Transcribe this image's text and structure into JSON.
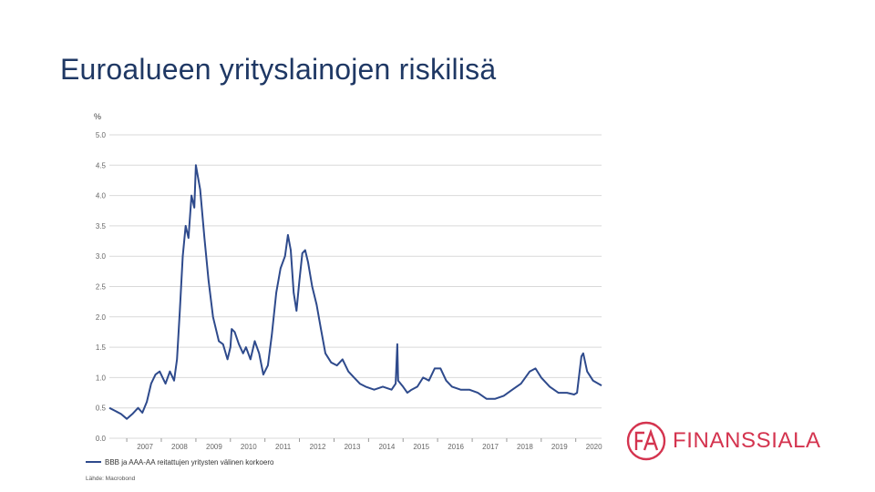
{
  "title": "Euroalueen yrityslainojen riskilisä",
  "logo": {
    "text": "FINANSSIALA",
    "mark_text": "FA",
    "color": "#d4344f"
  },
  "chart_data": {
    "type": "line",
    "title": "",
    "unit_label": "%",
    "xlabel": "",
    "ylabel": "",
    "ylim": [
      0.0,
      5.0
    ],
    "xlim": [
      "2006-07-01",
      "2020-09-30"
    ],
    "y_ticks": [
      0.0,
      0.5,
      1.0,
      1.5,
      2.0,
      2.5,
      3.0,
      3.5,
      4.0,
      4.5,
      5.0
    ],
    "y_tick_labels": [
      "0.0",
      "0.5",
      "1.0",
      "1.5",
      "2.0",
      "2.5",
      "3.0",
      "3.5",
      "4.0",
      "4.5",
      "5.0"
    ],
    "x_ticks": [
      "2007-01-01",
      "2008-01-01",
      "2009-01-01",
      "2010-01-01",
      "2011-01-01",
      "2012-01-01",
      "2013-01-01",
      "2014-01-01",
      "2015-01-01",
      "2016-01-01",
      "2017-01-01",
      "2018-01-01",
      "2019-01-01",
      "2020-01-01"
    ],
    "x_tick_labels": [
      "2007",
      "2008",
      "2009",
      "2010",
      "2011",
      "2012",
      "2013",
      "2014",
      "2015",
      "2016",
      "2017",
      "2018",
      "2019",
      "2020"
    ],
    "grid": true,
    "legend_position": "bottom-left",
    "line_color": "#2e4a8c",
    "source": "Lähde: Macrobond",
    "series": [
      {
        "name": "BBB ja AAA-AA reitattujen yritysten välinen korkoero",
        "points": [
          [
            "2006-07-01",
            0.5
          ],
          [
            "2006-09-01",
            0.45
          ],
          [
            "2006-11-01",
            0.4
          ],
          [
            "2007-01-01",
            0.32
          ],
          [
            "2007-03-01",
            0.4
          ],
          [
            "2007-05-01",
            0.5
          ],
          [
            "2007-06-15",
            0.42
          ],
          [
            "2007-08-01",
            0.6
          ],
          [
            "2007-09-15",
            0.9
          ],
          [
            "2007-11-01",
            1.05
          ],
          [
            "2007-12-15",
            1.1
          ],
          [
            "2008-01-15",
            1.0
          ],
          [
            "2008-02-15",
            0.9
          ],
          [
            "2008-04-01",
            1.1
          ],
          [
            "2008-05-15",
            0.95
          ],
          [
            "2008-06-15",
            1.3
          ],
          [
            "2008-07-15",
            2.1
          ],
          [
            "2008-08-15",
            3.0
          ],
          [
            "2008-09-15",
            3.5
          ],
          [
            "2008-10-15",
            3.3
          ],
          [
            "2008-11-15",
            4.0
          ],
          [
            "2008-12-15",
            3.8
          ],
          [
            "2009-01-01",
            4.5
          ],
          [
            "2009-02-15",
            4.1
          ],
          [
            "2009-04-01",
            3.3
          ],
          [
            "2009-05-15",
            2.6
          ],
          [
            "2009-07-01",
            2.0
          ],
          [
            "2009-09-01",
            1.6
          ],
          [
            "2009-10-15",
            1.55
          ],
          [
            "2009-12-01",
            1.3
          ],
          [
            "2010-01-01",
            1.5
          ],
          [
            "2010-01-15",
            1.8
          ],
          [
            "2010-02-15",
            1.75
          ],
          [
            "2010-04-01",
            1.55
          ],
          [
            "2010-05-15",
            1.4
          ],
          [
            "2010-06-15",
            1.5
          ],
          [
            "2010-08-01",
            1.3
          ],
          [
            "2010-09-15",
            1.6
          ],
          [
            "2010-11-01",
            1.4
          ],
          [
            "2010-12-15",
            1.05
          ],
          [
            "2011-02-01",
            1.2
          ],
          [
            "2011-03-15",
            1.7
          ],
          [
            "2011-05-01",
            2.4
          ],
          [
            "2011-06-15",
            2.8
          ],
          [
            "2011-08-01",
            3.0
          ],
          [
            "2011-09-01",
            3.35
          ],
          [
            "2011-10-01",
            3.1
          ],
          [
            "2011-11-01",
            2.4
          ],
          [
            "2011-12-01",
            2.1
          ],
          [
            "2012-01-01",
            2.6
          ],
          [
            "2012-02-01",
            3.05
          ],
          [
            "2012-03-01",
            3.1
          ],
          [
            "2012-04-01",
            2.9
          ],
          [
            "2012-05-15",
            2.5
          ],
          [
            "2012-07-01",
            2.2
          ],
          [
            "2012-08-15",
            1.8
          ],
          [
            "2012-10-01",
            1.4
          ],
          [
            "2012-12-01",
            1.25
          ],
          [
            "2013-02-01",
            1.2
          ],
          [
            "2013-04-01",
            1.3
          ],
          [
            "2013-06-01",
            1.1
          ],
          [
            "2013-08-01",
            1.0
          ],
          [
            "2013-10-01",
            0.9
          ],
          [
            "2013-12-01",
            0.85
          ],
          [
            "2014-03-01",
            0.8
          ],
          [
            "2014-06-01",
            0.85
          ],
          [
            "2014-09-01",
            0.8
          ],
          [
            "2014-10-15",
            0.9
          ],
          [
            "2014-11-01",
            1.55
          ],
          [
            "2014-11-10",
            0.95
          ],
          [
            "2015-01-01",
            0.85
          ],
          [
            "2015-02-15",
            0.75
          ],
          [
            "2015-04-01",
            0.8
          ],
          [
            "2015-06-01",
            0.85
          ],
          [
            "2015-08-01",
            1.0
          ],
          [
            "2015-10-01",
            0.95
          ],
          [
            "2015-12-01",
            1.15
          ],
          [
            "2016-02-01",
            1.15
          ],
          [
            "2016-04-01",
            0.95
          ],
          [
            "2016-06-01",
            0.85
          ],
          [
            "2016-09-01",
            0.8
          ],
          [
            "2016-12-01",
            0.8
          ],
          [
            "2017-03-01",
            0.75
          ],
          [
            "2017-06-01",
            0.65
          ],
          [
            "2017-09-01",
            0.65
          ],
          [
            "2017-12-01",
            0.7
          ],
          [
            "2018-03-01",
            0.8
          ],
          [
            "2018-06-01",
            0.9
          ],
          [
            "2018-09-01",
            1.1
          ],
          [
            "2018-11-01",
            1.15
          ],
          [
            "2019-01-01",
            1.0
          ],
          [
            "2019-04-01",
            0.85
          ],
          [
            "2019-07-01",
            0.75
          ],
          [
            "2019-10-01",
            0.75
          ],
          [
            "2019-12-15",
            0.72
          ],
          [
            "2020-01-15",
            0.75
          ],
          [
            "2020-03-01",
            1.35
          ],
          [
            "2020-03-20",
            1.4
          ],
          [
            "2020-05-01",
            1.1
          ],
          [
            "2020-07-01",
            0.95
          ],
          [
            "2020-09-30",
            0.87
          ]
        ]
      }
    ]
  }
}
